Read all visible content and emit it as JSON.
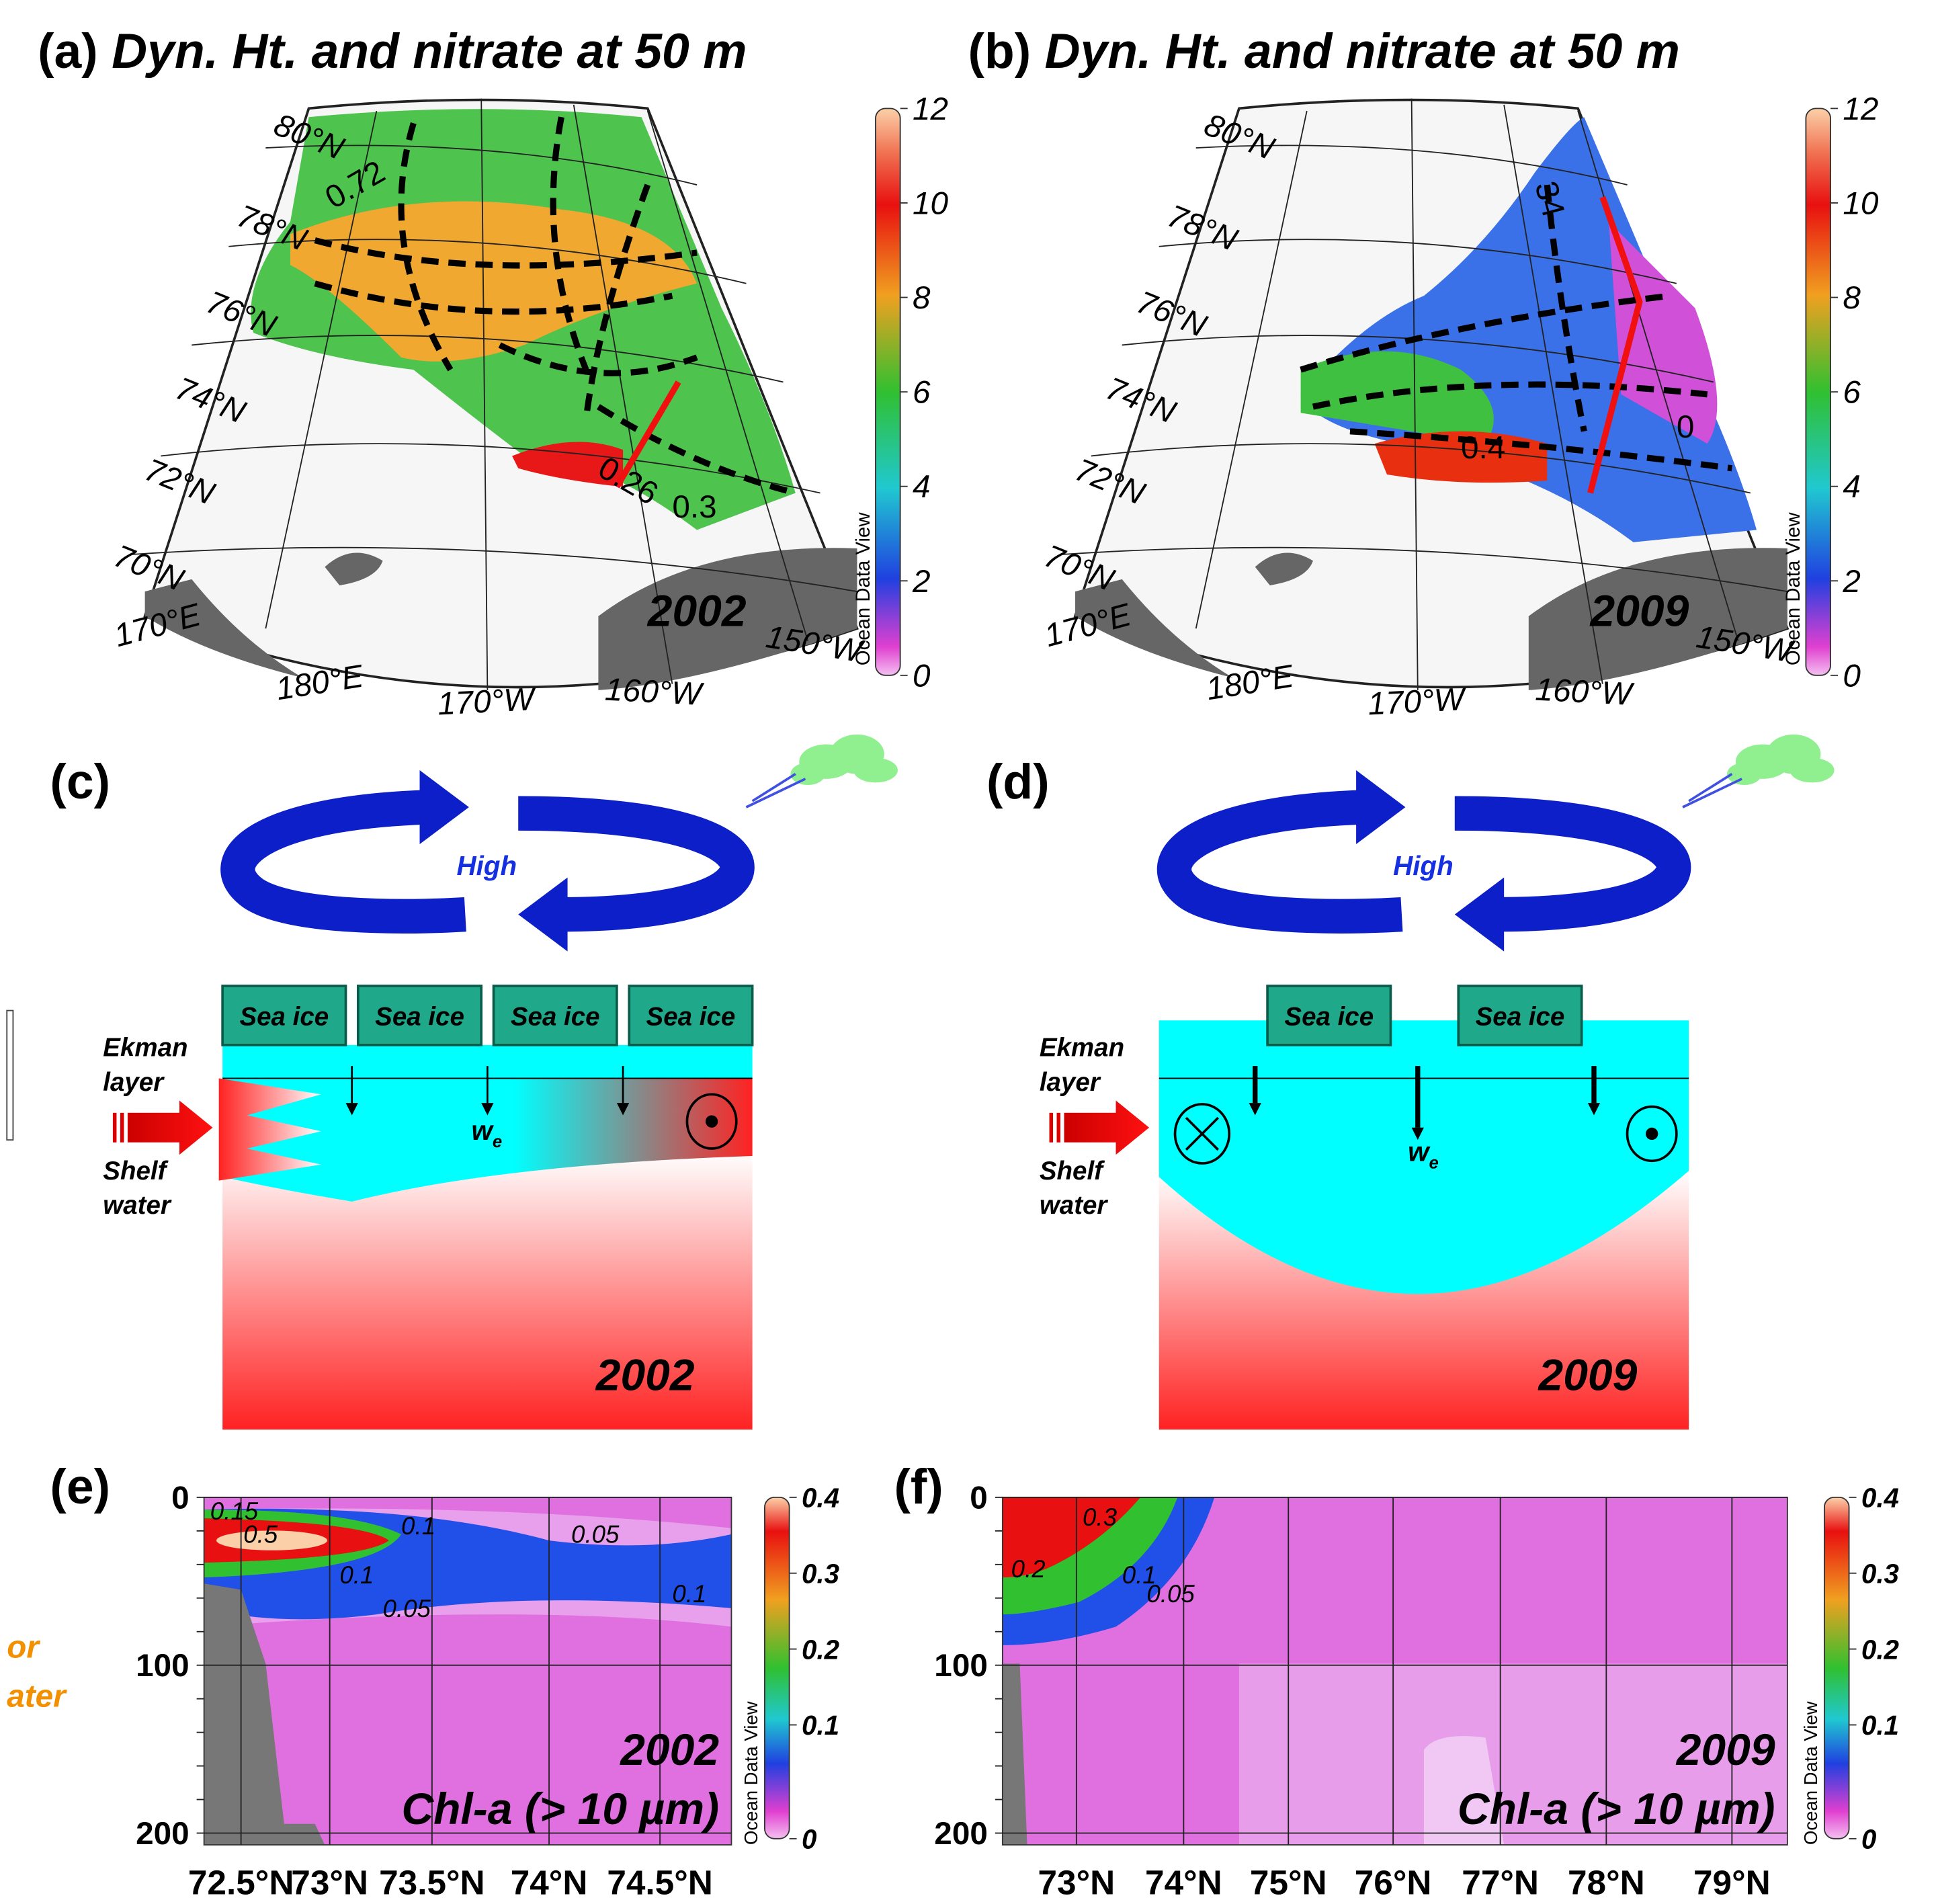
{
  "panels": {
    "a": {
      "label": "(a)",
      "title": "Dyn. Ht. and nitrate at 50 m",
      "year": "2002",
      "lat_labels": [
        "80°N",
        "78°N",
        "76°N",
        "74°N",
        "72°N",
        "70°N"
      ],
      "lon_labels": [
        "170°E",
        "180°E",
        "170°W",
        "160°W",
        "150°W"
      ],
      "contour_labels": [
        "0.72",
        "0.26",
        "0.3"
      ],
      "colorbar": {
        "ticks": [
          "12",
          "10",
          "8",
          "6",
          "4",
          "2",
          "0"
        ],
        "credit": "Ocean Data View"
      }
    },
    "b": {
      "label": "(b)",
      "title": "Dyn. Ht. and nitrate at 50 m",
      "year": "2009",
      "lat_labels": [
        "80°N",
        "78°N",
        "76°N",
        "74°N",
        "72°N",
        "70°N"
      ],
      "lon_labels": [
        "170°E",
        "180°E",
        "170°W",
        "160°W",
        "150°W"
      ],
      "contour_labels": [
        "34",
        "0.4",
        "0"
      ],
      "colorbar": {
        "ticks": [
          "12",
          "10",
          "8",
          "6",
          "4",
          "2",
          "0"
        ],
        "credit": "Ocean Data View"
      }
    },
    "c": {
      "label": "(c)",
      "high": "High",
      "sea_ice": [
        "Sea ice",
        "Sea ice",
        "Sea ice",
        "Sea ice"
      ],
      "ekman": [
        "Ekman",
        "layer"
      ],
      "shelf": [
        "Shelf",
        "water"
      ],
      "we": "w",
      "we_sub": "e",
      "year": "2002"
    },
    "d": {
      "label": "(d)",
      "high": "High",
      "sea_ice": [
        "Sea ice",
        "Sea ice"
      ],
      "ekman": [
        "Ekman",
        "layer"
      ],
      "shelf": [
        "Shelf",
        "water"
      ],
      "we": "w",
      "we_sub": "e",
      "year": "2009"
    },
    "e": {
      "label": "(e)",
      "yticks": [
        "0",
        "100",
        "200"
      ],
      "xticks": [
        "72.5°N",
        "73°N",
        "73.5°N",
        "74°N",
        "74.5°N"
      ],
      "contour_labels": [
        "0.15",
        "0.5",
        "0.1",
        "0.1",
        "0.05",
        "0.05",
        "0.1"
      ],
      "year": "2002",
      "caption": "Chl-a (> 10 µm)",
      "colorbar": {
        "ticks": [
          "0.4",
          "0.3",
          "0.2",
          "0.1",
          "0"
        ],
        "credit": "Ocean Data View"
      }
    },
    "f": {
      "label": "(f)",
      "yticks": [
        "0",
        "100",
        "200"
      ],
      "xticks": [
        "73°N",
        "74°N",
        "75°N",
        "76°N",
        "77°N",
        "78°N",
        "79°N"
      ],
      "contour_labels": [
        "0.3",
        "0.2",
        "0.1",
        "0.05"
      ],
      "year": "2009",
      "caption": "Chl-a (> 10 µm)",
      "colorbar": {
        "ticks": [
          "0.4",
          "0.3",
          "0.2",
          "0.1",
          "0"
        ],
        "credit": "Ocean Data View"
      }
    }
  },
  "left_fragment": [
    "or",
    "ater"
  ]
}
